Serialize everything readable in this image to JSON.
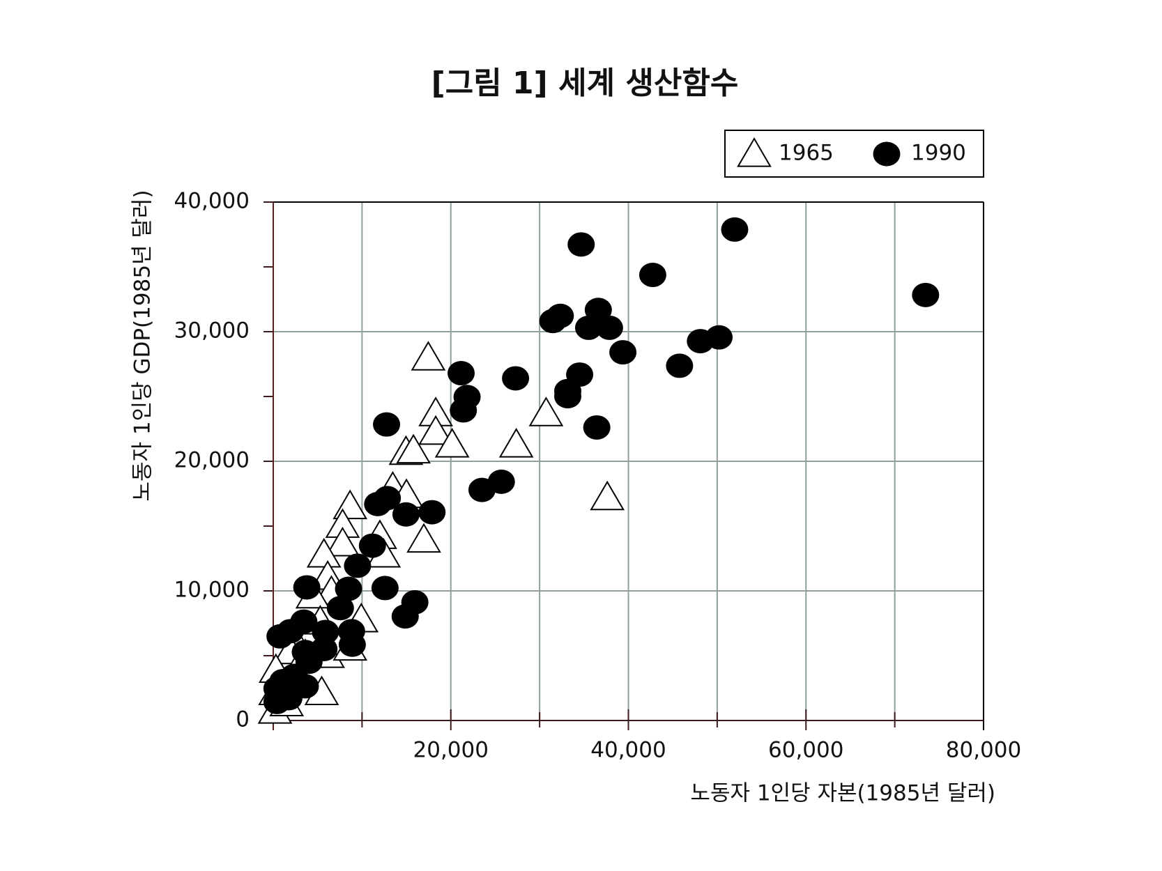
{
  "chart_data": {
    "type": "scatter",
    "title": "[그림 1] 세계 생산함수",
    "x_label": "노동자 1인당 자본(1985년 달러)",
    "y_label": "노동자 1인당 GDP(1985년 달러)",
    "xlim": [
      0,
      80000
    ],
    "ylim": [
      0,
      40000
    ],
    "xticks": [
      {
        "value": 20000,
        "label": "20,000"
      },
      {
        "value": 40000,
        "label": "40,000"
      },
      {
        "value": 60000,
        "label": "60,000"
      },
      {
        "value": 80000,
        "label": "80,000"
      }
    ],
    "xticks_minor": [
      10000,
      30000,
      50000,
      70000
    ],
    "yticks": [
      0,
      {
        "value": 10000,
        "label": "10,000"
      },
      {
        "value": 20000,
        "label": "20,000"
      },
      {
        "value": 30000,
        "label": "30,000"
      },
      {
        "value": 40000,
        "label": "40,000"
      }
    ],
    "yticks_minor": [
      5000,
      15000,
      25000,
      35000
    ],
    "grid": true,
    "legend": "top-right",
    "series": [
      {
        "name": "1965",
        "color": "#000000",
        "marker": "triangle",
        "x": [
          17460,
          18300,
          18300,
          20150,
          27370,
          30730,
          37620,
          14950,
          15790,
          13460,
          15000,
          16960,
          12010,
          8650,
          7810,
          7810,
          12430,
          5710,
          6130,
          6550,
          4450,
          9910,
          5290,
          6130,
          2770,
          1930,
          300,
          250,
          200,
          1510,
          5460,
          8650,
          3610,
          1930
        ],
        "values": [
          28000,
          23700,
          22270,
          21290,
          21290,
          23700,
          17220,
          20720,
          20830,
          17960,
          17390,
          13950,
          14230,
          16530,
          15090,
          13660,
          12800,
          12800,
          11080,
          9930,
          9640,
          7800,
          7630,
          5050,
          5740,
          5340,
          3900,
          2180,
          750,
          1320,
          2180,
          5620,
          5050,
          2750
        ]
      },
      {
        "name": "1990",
        "color": "#000000",
        "marker": "circle",
        "x": [
          51970,
          73470,
          34680,
          42740,
          32330,
          31490,
          36610,
          35520,
          37870,
          39380,
          48110,
          50210,
          45760,
          34510,
          33170,
          33170,
          36440,
          27290,
          21160,
          21830,
          21410,
          12760,
          25690,
          23510,
          17880,
          14950,
          12850,
          11760,
          11170,
          9490,
          3780,
          8480,
          12590,
          7560,
          15950,
          14860,
          8820,
          8900,
          5880,
          3440,
          1930,
          760,
          3610,
          5710,
          4030,
          2350,
          1090,
          420,
          1760,
          3610,
          420,
          2600
        ],
        "values": [
          37880,
          32830,
          36730,
          34380,
          31220,
          30820,
          31680,
          30300,
          30300,
          28410,
          29270,
          29560,
          27370,
          26690,
          25420,
          25020,
          22610,
          26400,
          26800,
          24960,
          23930,
          22840,
          18420,
          17790,
          16070,
          15900,
          17160,
          16700,
          13490,
          11940,
          10270,
          10160,
          10220,
          8670,
          9120,
          8030,
          6890,
          5850,
          6830,
          7630,
          6890,
          6490,
          5280,
          5510,
          4530,
          3440,
          3040,
          2470,
          1720,
          2640,
          1430,
          3040
        ]
      }
    ]
  }
}
